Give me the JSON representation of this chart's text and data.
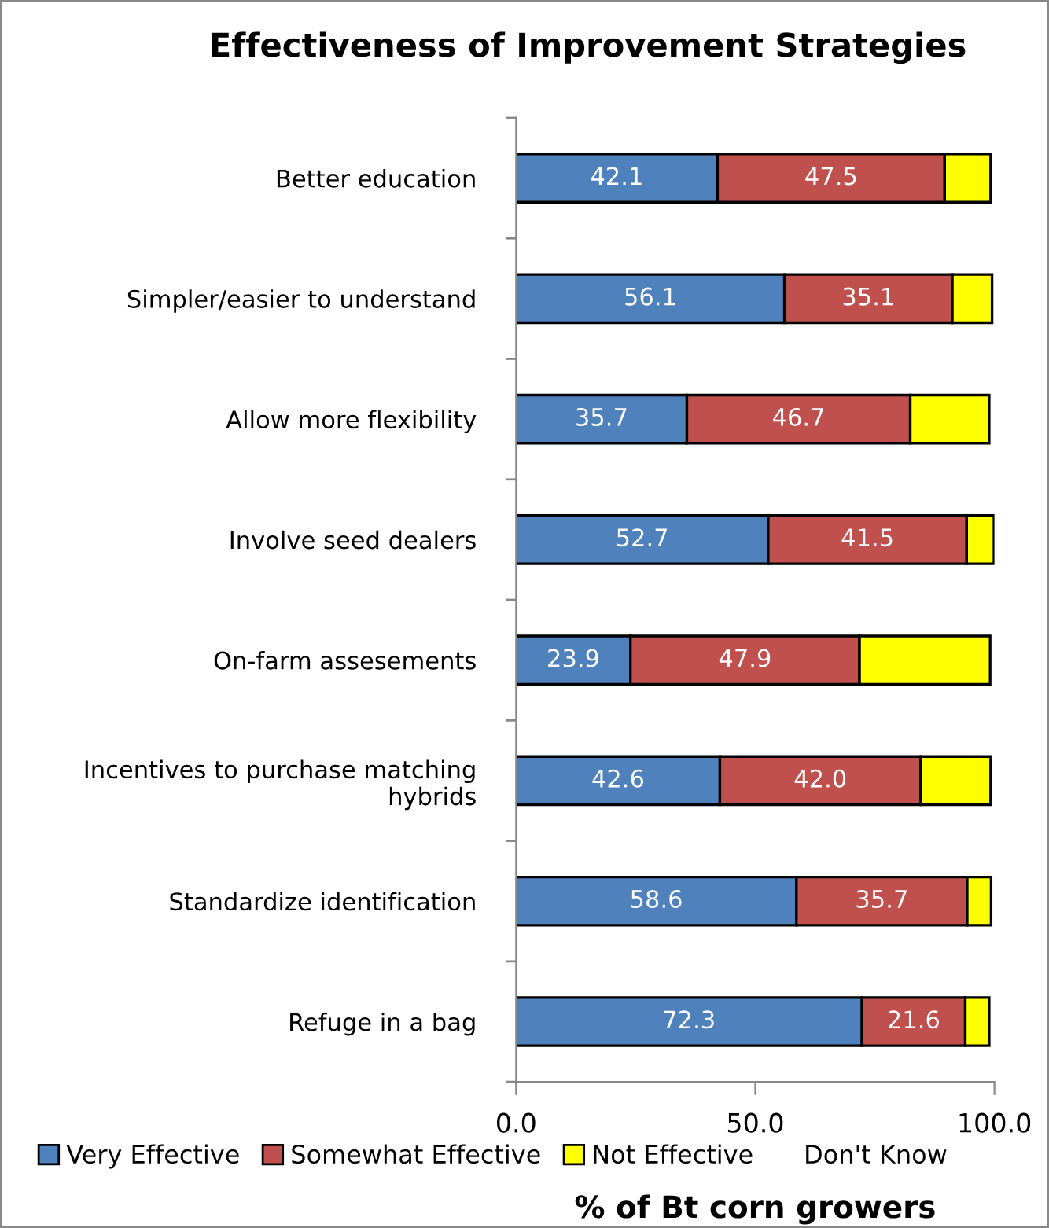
{
  "chart_data": {
    "type": "bar",
    "orientation": "horizontal",
    "stacked": true,
    "title": "Effectiveness of Improvement Strategies",
    "xlabel": "% of Bt corn growers",
    "categories": [
      "Better education",
      "Simpler/easier to understand",
      "Allow more flexibility",
      "Involve seed dealers",
      "On-farm assesements",
      "Incentives to purchase matching hybrids",
      "Standardize identification",
      "Refuge in a bag"
    ],
    "series": [
      {
        "name": "Very Effective",
        "color": "#4f81bd",
        "values": [
          42.1,
          56.1,
          35.7,
          52.7,
          23.9,
          42.6,
          58.6,
          72.3
        ],
        "value_labels": [
          "42.1",
          "56.1",
          "35.7",
          "52.7",
          "23.9",
          "42.6",
          "58.6",
          "72.3"
        ]
      },
      {
        "name": "Somewhat Effective",
        "color": "#c0504d",
        "values": [
          47.5,
          35.1,
          46.7,
          41.5,
          47.9,
          42.0,
          35.7,
          21.6
        ],
        "value_labels": [
          "47.5",
          "35.1",
          "46.7",
          "41.5",
          "47.9",
          "42.0",
          "35.7",
          "21.6"
        ]
      },
      {
        "name": "Not Effective",
        "color": "#ffff00",
        "values": [
          9.6,
          8.3,
          16.5,
          5.7,
          27.3,
          14.6,
          5.0,
          5.0
        ]
      },
      {
        "name": "Don't Know",
        "values": [
          null,
          null,
          null,
          null,
          null,
          null,
          null,
          null
        ]
      }
    ],
    "xlim": [
      0,
      100
    ],
    "xticks": [
      {
        "value": 0,
        "label": "0.0"
      },
      {
        "value": 50,
        "label": "50.0"
      },
      {
        "value": 100,
        "label": "100.0"
      }
    ],
    "legend": "bottom",
    "grid": false
  }
}
